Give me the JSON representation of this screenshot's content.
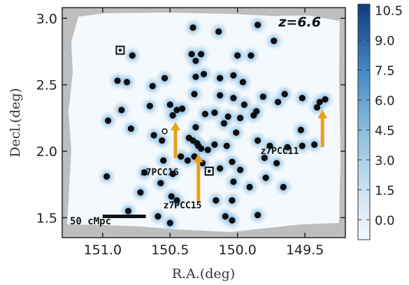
{
  "chart_data": {
    "type": "scatter",
    "title": "",
    "xlabel": "R.A.(deg)",
    "ylabel": "Decl.(deg)",
    "xlim": [
      151.3,
      149.2
    ],
    "ylim": [
      1.35,
      3.08
    ],
    "x_ticks": [
      "151.0",
      "150.5",
      "150.0",
      "149.5"
    ],
    "x_tick_values": [
      151.0,
      150.5,
      150.0,
      149.5
    ],
    "y_ticks": [
      "1.5",
      "2.0",
      "2.5",
      "3.0"
    ],
    "y_tick_values": [
      1.5,
      2.0,
      2.5,
      3.0
    ],
    "redshift_label": "z=6.6",
    "scale_bar": {
      "label": "50 cMpc",
      "from_ra": 151.0,
      "to_ra": 150.68,
      "dec": 1.51
    },
    "colorbar": {
      "ticks": [
        "10.5",
        "9.0",
        "7.5",
        "6.0",
        "4.5",
        "3.0",
        "1.5",
        "0.0"
      ],
      "tick_values": [
        10.5,
        9.0,
        7.5,
        6.0,
        4.5,
        3.0,
        1.5,
        0.0
      ],
      "range": [
        -1.0,
        10.8
      ],
      "color_low": "#f2f8fd",
      "color_high": "#0b3c7d"
    },
    "colors": {
      "masked_region": "#bebebe",
      "field": "#f4f9fd",
      "arrow": "#e8a21a",
      "source": "#0d0d0d"
    },
    "annotations": [
      {
        "label": "z7PCC16",
        "ra": 150.72,
        "dec": 1.82,
        "arrow_from": [
          150.46,
          1.95
        ],
        "arrow_to": [
          150.46,
          2.22
        ]
      },
      {
        "label": "z7PCC15",
        "ra": 150.55,
        "dec": 1.57,
        "arrow_from": [
          150.29,
          1.62
        ],
        "arrow_to": [
          150.29,
          1.98
        ]
      },
      {
        "label": "z7PCC11",
        "ra": 149.83,
        "dec": 1.98,
        "arrow_from": [
          149.37,
          2.03
        ],
        "arrow_to": [
          149.37,
          2.31
        ]
      }
    ],
    "square_markers": [
      {
        "ra": 150.87,
        "dec": 2.76
      },
      {
        "ra": 150.21,
        "dec": 1.85
      }
    ],
    "open_markers": [
      {
        "ra": 150.54,
        "dec": 2.15
      }
    ],
    "points": [
      [
        150.33,
        2.93
      ],
      [
        150.14,
        2.9
      ],
      [
        149.85,
        2.95
      ],
      [
        150.78,
        2.72
      ],
      [
        150.34,
        2.73
      ],
      [
        150.31,
        2.68
      ],
      [
        150.27,
        2.73
      ],
      [
        150.0,
        2.72
      ],
      [
        149.9,
        2.72
      ],
      [
        149.73,
        2.83
      ],
      [
        150.89,
        2.53
      ],
      [
        150.82,
        2.52
      ],
      [
        150.63,
        2.49
      ],
      [
        150.54,
        2.55
      ],
      [
        150.31,
        2.56
      ],
      [
        150.25,
        2.58
      ],
      [
        150.13,
        2.55
      ],
      [
        150.03,
        2.57
      ],
      [
        149.96,
        2.52
      ],
      [
        150.32,
        2.43
      ],
      [
        150.13,
        2.42
      ],
      [
        150.03,
        2.4
      ],
      [
        149.95,
        2.35
      ],
      [
        149.81,
        2.41
      ],
      [
        149.7,
        2.37
      ],
      [
        149.65,
        2.43
      ],
      [
        149.52,
        2.4
      ],
      [
        150.86,
        2.31
      ],
      [
        150.65,
        2.34
      ],
      [
        150.5,
        2.35
      ],
      [
        150.45,
        2.31
      ],
      [
        150.48,
        2.27
      ],
      [
        150.41,
        2.32
      ],
      [
        150.24,
        2.28
      ],
      [
        150.17,
        2.29
      ],
      [
        150.07,
        2.26
      ],
      [
        149.98,
        2.25
      ],
      [
        149.88,
        2.27
      ],
      [
        149.86,
        2.3
      ],
      [
        149.39,
        2.37
      ],
      [
        149.35,
        2.39
      ],
      [
        149.41,
        2.33
      ],
      [
        150.96,
        2.23
      ],
      [
        150.79,
        2.17
      ],
      [
        150.62,
        2.12
      ],
      [
        150.31,
        2.18
      ],
      [
        150.1,
        2.21
      ],
      [
        150.01,
        2.14
      ],
      [
        149.53,
        2.16
      ],
      [
        149.43,
        2.05
      ],
      [
        150.56,
        2.08
      ],
      [
        150.36,
        2.1
      ],
      [
        150.33,
        2.08
      ],
      [
        150.3,
        2.06
      ],
      [
        150.29,
        2.04
      ],
      [
        150.27,
        2.02
      ],
      [
        150.22,
        2.01
      ],
      [
        150.17,
        2.05
      ],
      [
        150.08,
        2.04
      ],
      [
        149.85,
        2.08
      ],
      [
        149.76,
        2.04
      ],
      [
        149.63,
        2.03
      ],
      [
        149.52,
        2.04
      ],
      [
        150.32,
        1.96
      ],
      [
        150.37,
        1.93
      ],
      [
        150.42,
        1.96
      ],
      [
        150.26,
        1.91
      ],
      [
        150.55,
        1.93
      ],
      [
        150.04,
        1.92
      ],
      [
        149.8,
        1.95
      ],
      [
        149.71,
        1.91
      ],
      [
        150.97,
        1.81
      ],
      [
        150.69,
        1.84
      ],
      [
        150.48,
        1.83
      ],
      [
        150.13,
        1.87
      ],
      [
        149.98,
        1.86
      ],
      [
        149.79,
        1.8
      ],
      [
        150.57,
        1.76
      ],
      [
        150.03,
        1.77
      ],
      [
        149.91,
        1.73
      ],
      [
        149.66,
        1.73
      ],
      [
        150.72,
        1.69
      ],
      [
        150.45,
        1.63
      ],
      [
        150.49,
        1.66
      ],
      [
        150.16,
        1.63
      ],
      [
        150.04,
        1.63
      ],
      [
        150.59,
        1.51
      ],
      [
        150.5,
        1.46
      ],
      [
        150.09,
        1.51
      ],
      [
        150.04,
        1.48
      ],
      [
        149.85,
        1.52
      ],
      [
        150.81,
        1.55
      ]
    ]
  }
}
